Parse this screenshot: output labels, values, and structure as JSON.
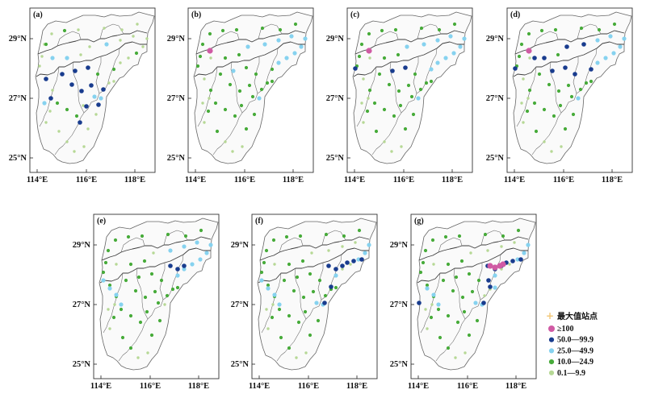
{
  "map": {
    "panels": [
      {
        "id": "a",
        "label": "(a)"
      },
      {
        "id": "b",
        "label": "(b)"
      },
      {
        "id": "c",
        "label": "(c)"
      },
      {
        "id": "d",
        "label": "(d)"
      },
      {
        "id": "e",
        "label": "(e)"
      },
      {
        "id": "f",
        "label": "(f)"
      },
      {
        "id": "g",
        "label": "(g)"
      }
    ],
    "lat_labels": [
      "29°N",
      "27°N",
      "25°N"
    ],
    "lon_labels": [
      "114°E",
      "116°E",
      "118°E"
    ],
    "legend": {
      "title": "最大值站点",
      "title_marker_color": "#f3c87a",
      "items": [
        {
          "label": "≥100",
          "color": "#d05aa4"
        },
        {
          "label": "50.0—99.9",
          "color": "#193c8e"
        },
        {
          "label": "25.0—49.9",
          "color": "#86d2ef"
        },
        {
          "label": "10.0—24.9",
          "color": "#47ab3a"
        },
        {
          "label": "0.1—9.9",
          "color": "#b6d895"
        }
      ]
    }
  }
}
